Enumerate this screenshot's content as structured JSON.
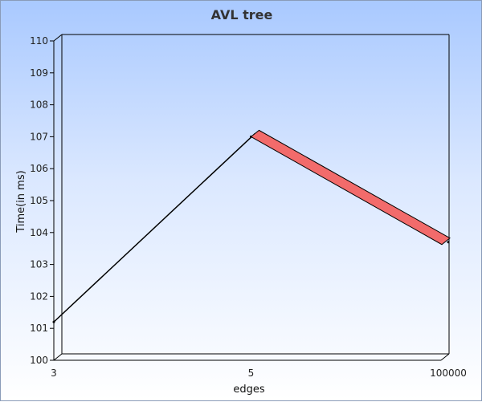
{
  "chart_data": {
    "type": "line",
    "title": "AVL tree",
    "xlabel": "edges",
    "ylabel": "Time(in ms)",
    "categories": [
      "3",
      "5",
      "100000"
    ],
    "series": [
      {
        "values": [
          101.2,
          107.0,
          103.7
        ]
      }
    ],
    "ylim": [
      100,
      110
    ],
    "yticks": [
      "100",
      "101",
      "102",
      "103",
      "104",
      "105",
      "106",
      "107",
      "108",
      "109",
      "110"
    ],
    "grid": false,
    "legend": "none",
    "colors": {
      "rising_segment": "#000000",
      "falling_segment": "#f26b6b",
      "background_top": "#a9c9ff",
      "background_bottom": "#ffffff"
    }
  }
}
